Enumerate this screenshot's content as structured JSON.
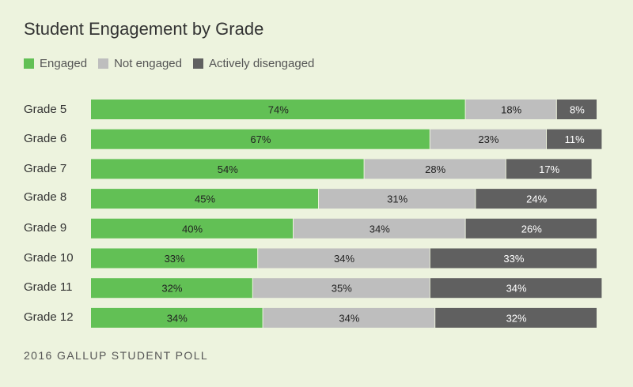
{
  "title": "Student Engagement by Grade",
  "footer": "2016 GALLUP STUDENT POLL",
  "colors": {
    "background": "#edf3de",
    "engaged": "#62c055",
    "not_engaged": "#bebebe",
    "actively_disengaged": "#606060",
    "bar_text": "#222222"
  },
  "chart_data": {
    "type": "bar",
    "orientation": "horizontal",
    "stacked": true,
    "title": "Student Engagement by Grade",
    "xlabel": "",
    "ylabel": "",
    "xlim": [
      0,
      100
    ],
    "unit": "%",
    "legend_position": "top-left",
    "grid": false,
    "categories": [
      "Grade 5",
      "Grade 6",
      "Grade 7",
      "Grade 8",
      "Grade 9",
      "Grade 10",
      "Grade 11",
      "Grade 12"
    ],
    "series": [
      {
        "name": "Engaged",
        "color": "#62c055",
        "values": [
          74,
          67,
          54,
          45,
          40,
          33,
          32,
          34
        ]
      },
      {
        "name": "Not engaged",
        "color": "#bebebe",
        "values": [
          18,
          23,
          28,
          31,
          34,
          34,
          35,
          34
        ]
      },
      {
        "name": "Actively disengaged",
        "color": "#606060",
        "values": [
          8,
          11,
          17,
          24,
          26,
          33,
          34,
          32
        ]
      }
    ]
  }
}
